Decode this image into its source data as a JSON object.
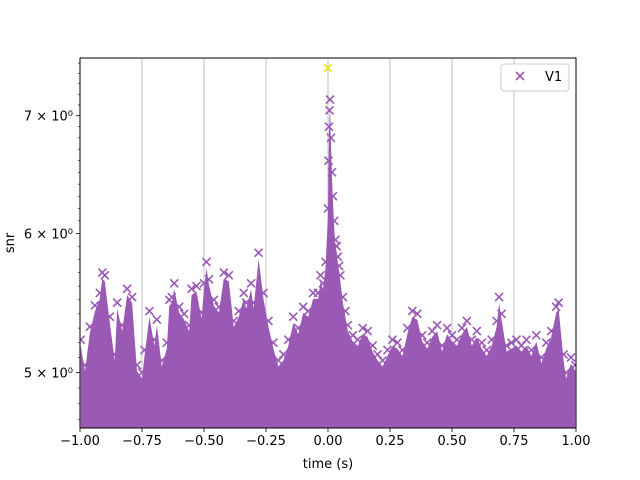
{
  "chart_data": {
    "type": "scatter",
    "xlabel": "time (s)",
    "ylabel": "snr",
    "xlim": [
      -1.0,
      1.0
    ],
    "ylim": [
      4.65,
      7.55
    ],
    "yscale": "log",
    "grid": "x-major",
    "legend": {
      "position": "top-right",
      "entries": [
        "V1"
      ]
    },
    "x_ticks": [
      -1.0,
      -0.75,
      -0.5,
      -0.25,
      0.0,
      0.25,
      0.5,
      0.75,
      1.0
    ],
    "x_tick_labels": [
      "−1.00",
      "−0.75",
      "−0.50",
      "−0.25",
      "0.00",
      "0.25",
      "0.50",
      "0.75",
      "1.00"
    ],
    "y_ticks": [
      5,
      6,
      7
    ],
    "y_tick_labels": [
      "5 × 10⁰",
      "6 × 10⁰",
      "7 × 10⁰"
    ],
    "series": [
      {
        "name": "V1",
        "color": "#9b59b6",
        "marker": "x",
        "points": [
          [
            -0.997,
            5.22
          ],
          [
            -0.98,
            5.05
          ],
          [
            -0.96,
            5.31
          ],
          [
            -0.94,
            5.46
          ],
          [
            -0.92,
            5.55
          ],
          [
            -0.91,
            5.7
          ],
          [
            -0.9,
            5.68
          ],
          [
            -0.88,
            5.38
          ],
          [
            -0.86,
            5.12
          ],
          [
            -0.85,
            5.48
          ],
          [
            -0.83,
            5.32
          ],
          [
            -0.81,
            5.58
          ],
          [
            -0.79,
            5.52
          ],
          [
            -0.77,
            5.05
          ],
          [
            -0.75,
            5.0
          ],
          [
            -0.74,
            5.15
          ],
          [
            -0.72,
            5.42
          ],
          [
            -0.7,
            5.22
          ],
          [
            -0.69,
            5.36
          ],
          [
            -0.67,
            5.08
          ],
          [
            -0.65,
            5.2
          ],
          [
            -0.64,
            5.5
          ],
          [
            -0.63,
            5.52
          ],
          [
            -0.62,
            5.62
          ],
          [
            -0.6,
            5.45
          ],
          [
            -0.58,
            5.4
          ],
          [
            -0.56,
            5.32
          ],
          [
            -0.55,
            5.58
          ],
          [
            -0.53,
            5.6
          ],
          [
            -0.51,
            5.41
          ],
          [
            -0.5,
            5.62
          ],
          [
            -0.49,
            5.78
          ],
          [
            -0.48,
            5.65
          ],
          [
            -0.46,
            5.5
          ],
          [
            -0.44,
            5.45
          ],
          [
            -0.42,
            5.7
          ],
          [
            -0.4,
            5.68
          ],
          [
            -0.38,
            5.35
          ],
          [
            -0.36,
            5.42
          ],
          [
            -0.34,
            5.55
          ],
          [
            -0.33,
            5.48
          ],
          [
            -0.31,
            5.62
          ],
          [
            -0.3,
            5.48
          ],
          [
            -0.28,
            5.85
          ],
          [
            -0.26,
            5.55
          ],
          [
            -0.24,
            5.35
          ],
          [
            -0.22,
            5.2
          ],
          [
            -0.2,
            5.08
          ],
          [
            -0.18,
            5.12
          ],
          [
            -0.16,
            5.22
          ],
          [
            -0.14,
            5.38
          ],
          [
            -0.12,
            5.3
          ],
          [
            -0.1,
            5.45
          ],
          [
            -0.08,
            5.42
          ],
          [
            -0.06,
            5.55
          ],
          [
            -0.04,
            5.55
          ],
          [
            -0.03,
            5.68
          ],
          [
            -0.02,
            5.62
          ],
          [
            -0.01,
            5.78
          ],
          [
            0.0,
            6.2
          ],
          [
            0.002,
            6.6
          ],
          [
            0.004,
            6.9
          ],
          [
            0.006,
            7.05
          ],
          [
            0.008,
            7.15
          ],
          [
            0.012,
            6.8
          ],
          [
            0.016,
            6.5
          ],
          [
            0.02,
            6.3
          ],
          [
            0.025,
            6.1
          ],
          [
            0.03,
            5.95
          ],
          [
            0.035,
            5.9
          ],
          [
            0.04,
            5.82
          ],
          [
            0.045,
            5.75
          ],
          [
            0.05,
            5.68
          ],
          [
            0.06,
            5.52
          ],
          [
            0.07,
            5.42
          ],
          [
            0.08,
            5.32
          ],
          [
            0.1,
            5.25
          ],
          [
            0.12,
            5.22
          ],
          [
            0.14,
            5.3
          ],
          [
            0.16,
            5.28
          ],
          [
            0.18,
            5.18
          ],
          [
            0.2,
            5.12
          ],
          [
            0.22,
            5.08
          ],
          [
            0.24,
            5.15
          ],
          [
            0.26,
            5.22
          ],
          [
            0.28,
            5.2
          ],
          [
            0.3,
            5.15
          ],
          [
            0.32,
            5.3
          ],
          [
            0.34,
            5.42
          ],
          [
            0.36,
            5.4
          ],
          [
            0.38,
            5.25
          ],
          [
            0.4,
            5.2
          ],
          [
            0.42,
            5.28
          ],
          [
            0.44,
            5.32
          ],
          [
            0.46,
            5.18
          ],
          [
            0.48,
            5.3
          ],
          [
            0.5,
            5.25
          ],
          [
            0.52,
            5.22
          ],
          [
            0.54,
            5.3
          ],
          [
            0.56,
            5.35
          ],
          [
            0.58,
            5.22
          ],
          [
            0.6,
            5.28
          ],
          [
            0.62,
            5.2
          ],
          [
            0.64,
            5.15
          ],
          [
            0.66,
            5.22
          ],
          [
            0.68,
            5.35
          ],
          [
            0.69,
            5.52
          ],
          [
            0.7,
            5.4
          ],
          [
            0.72,
            5.18
          ],
          [
            0.74,
            5.2
          ],
          [
            0.76,
            5.22
          ],
          [
            0.78,
            5.18
          ],
          [
            0.8,
            5.22
          ],
          [
            0.82,
            5.15
          ],
          [
            0.84,
            5.25
          ],
          [
            0.86,
            5.1
          ],
          [
            0.88,
            5.2
          ],
          [
            0.9,
            5.28
          ],
          [
            0.92,
            5.45
          ],
          [
            0.93,
            5.48
          ],
          [
            0.95,
            5.12
          ],
          [
            0.96,
            5.0
          ],
          [
            0.98,
            5.1
          ],
          [
            0.997,
            5.05
          ]
        ]
      }
    ],
    "highlight": {
      "x": 0.0,
      "y": 7.45,
      "color": "#f5e50a",
      "marker": "x"
    }
  }
}
